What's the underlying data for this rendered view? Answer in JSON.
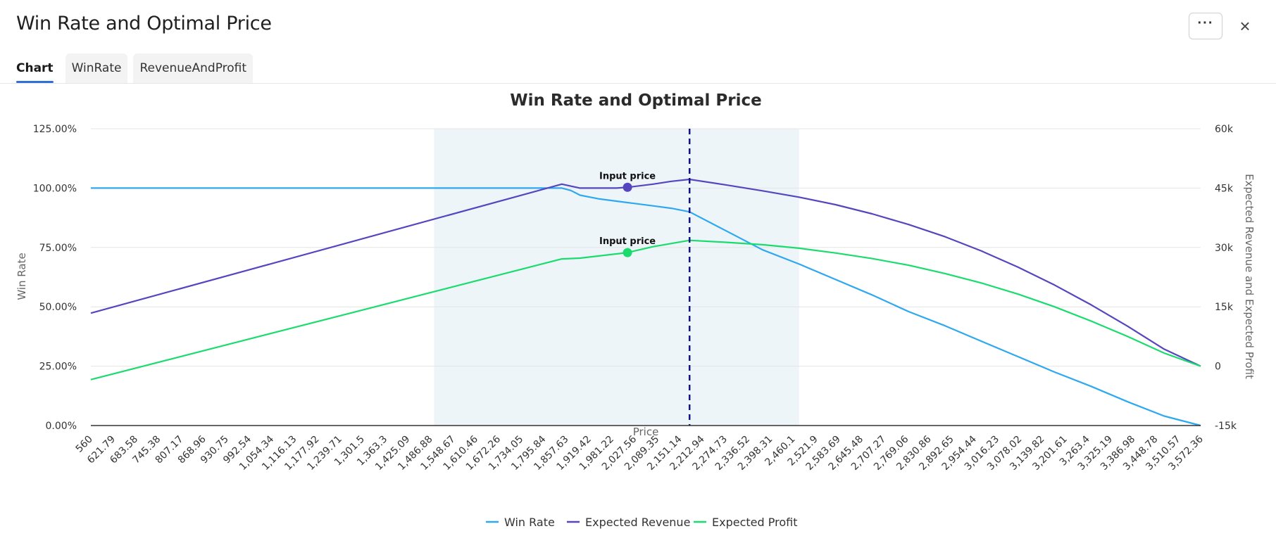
{
  "window": {
    "title": "Win Rate and Optimal Price",
    "more_label": "···",
    "close_label": "×",
    "more_icon": "more-horizontal-icon",
    "close_icon": "close-icon"
  },
  "tabs": [
    {
      "label": "Chart",
      "active": true
    },
    {
      "label": "WinRate",
      "active": false
    },
    {
      "label": "RevenueAndProfit",
      "active": false
    }
  ],
  "legend": [
    {
      "label": "Win Rate",
      "color": "#2ea8f0"
    },
    {
      "label": "Expected Revenue",
      "color": "#5546c0"
    },
    {
      "label": "Expected Profit",
      "color": "#1adc6e"
    }
  ],
  "chart_data": {
    "type": "line",
    "title": "Win Rate and Optimal Price",
    "xlabel": "Price",
    "ylabel_left": "Win Rate",
    "ylabel_right": "Expected Revenue and Expected Profit",
    "x_ticks": [
      "560",
      "621.79",
      "683.58",
      "745.38",
      "807.17",
      "868.96",
      "930.75",
      "992.54",
      "1,054.34",
      "1,116.13",
      "1,177.92",
      "1,239.71",
      "1,301.5",
      "1,363.3",
      "1,425.09",
      "1,486.88",
      "1,548.67",
      "1,610.46",
      "1,672.26",
      "1,734.05",
      "1,795.84",
      "1,857.63",
      "1,919.42",
      "1,981.22",
      "2,027.56",
      "2,089.35",
      "2,151.14",
      "2,212.94",
      "2,274.73",
      "2,336.52",
      "2,398.31",
      "2,460.1",
      "2,521.9",
      "2,583.69",
      "2,645.48",
      "2,707.27",
      "2,769.06",
      "2,830.86",
      "2,892.65",
      "2,954.44",
      "3,016.23",
      "3,078.02",
      "3,139.82",
      "3,201.61",
      "3,263.4",
      "3,325.19",
      "3,386.98",
      "3,448.78",
      "3,510.57",
      "3,572.36"
    ],
    "y_left_ticks": [
      "0.00%",
      "25.00%",
      "50.00%",
      "75.00%",
      "100.00%",
      "125.00%"
    ],
    "y_left_range": [
      0,
      1.25
    ],
    "y_right_ticks": [
      "-15k",
      "0",
      "15k",
      "30k",
      "45k",
      "60k"
    ],
    "y_right_range": [
      -15000,
      60000
    ],
    "x_range": [
      560,
      3600
    ],
    "shaded_region": [
      1500,
      2500
    ],
    "optimal_price": 2200,
    "input_price": 2030,
    "annotation_label": "Input price",
    "grid": true,
    "legend_position": "bottom",
    "series": [
      {
        "name": "Win Rate",
        "color": "#2ea8f0",
        "axis": "left",
        "step": true,
        "x": [
          560,
          1850,
          1875,
          1900,
          1950,
          2000,
          2050,
          2100,
          2150,
          2200,
          2300,
          2400,
          2500,
          2600,
          2700,
          2800,
          2900,
          3000,
          3100,
          3200,
          3300,
          3400,
          3500,
          3600
        ],
        "y": [
          1.0,
          1.0,
          0.99,
          0.97,
          0.955,
          0.945,
          0.935,
          0.925,
          0.915,
          0.9,
          0.82,
          0.74,
          0.68,
          0.615,
          0.55,
          0.48,
          0.42,
          0.355,
          0.29,
          0.225,
          0.165,
          0.1,
          0.04,
          0.0
        ]
      },
      {
        "name": "Expected Revenue",
        "color": "#5546c0",
        "axis": "right",
        "x": [
          560,
          1850,
          1900,
          2000,
          2030,
          2100,
          2150,
          2200,
          2300,
          2400,
          2500,
          2600,
          2700,
          2800,
          2900,
          3000,
          3100,
          3200,
          3300,
          3400,
          3500,
          3600
        ],
        "y": [
          13400,
          46000,
          45000,
          45000,
          45200,
          46000,
          46700,
          47200,
          45800,
          44300,
          42700,
          40800,
          38500,
          35800,
          32700,
          29100,
          25000,
          20500,
          15500,
          10100,
          4300,
          0
        ]
      },
      {
        "name": "Expected Profit",
        "color": "#1adc6e",
        "axis": "right",
        "x": [
          560,
          1850,
          1900,
          2030,
          2100,
          2200,
          2300,
          2400,
          2500,
          2600,
          2700,
          2800,
          2900,
          3000,
          3100,
          3200,
          3300,
          3400,
          3500,
          3600
        ],
        "y": [
          -3400,
          27100,
          27300,
          28700,
          30200,
          31800,
          31300,
          30700,
          29800,
          28600,
          27200,
          25500,
          23400,
          21000,
          18200,
          15000,
          11400,
          7500,
          3300,
          0
        ]
      }
    ],
    "markers": [
      {
        "series": "Expected Revenue",
        "x": 2030,
        "y": 45200,
        "label": "Input price"
      },
      {
        "series": "Expected Profit",
        "x": 2030,
        "y": 28700,
        "label": "Input price"
      }
    ]
  }
}
